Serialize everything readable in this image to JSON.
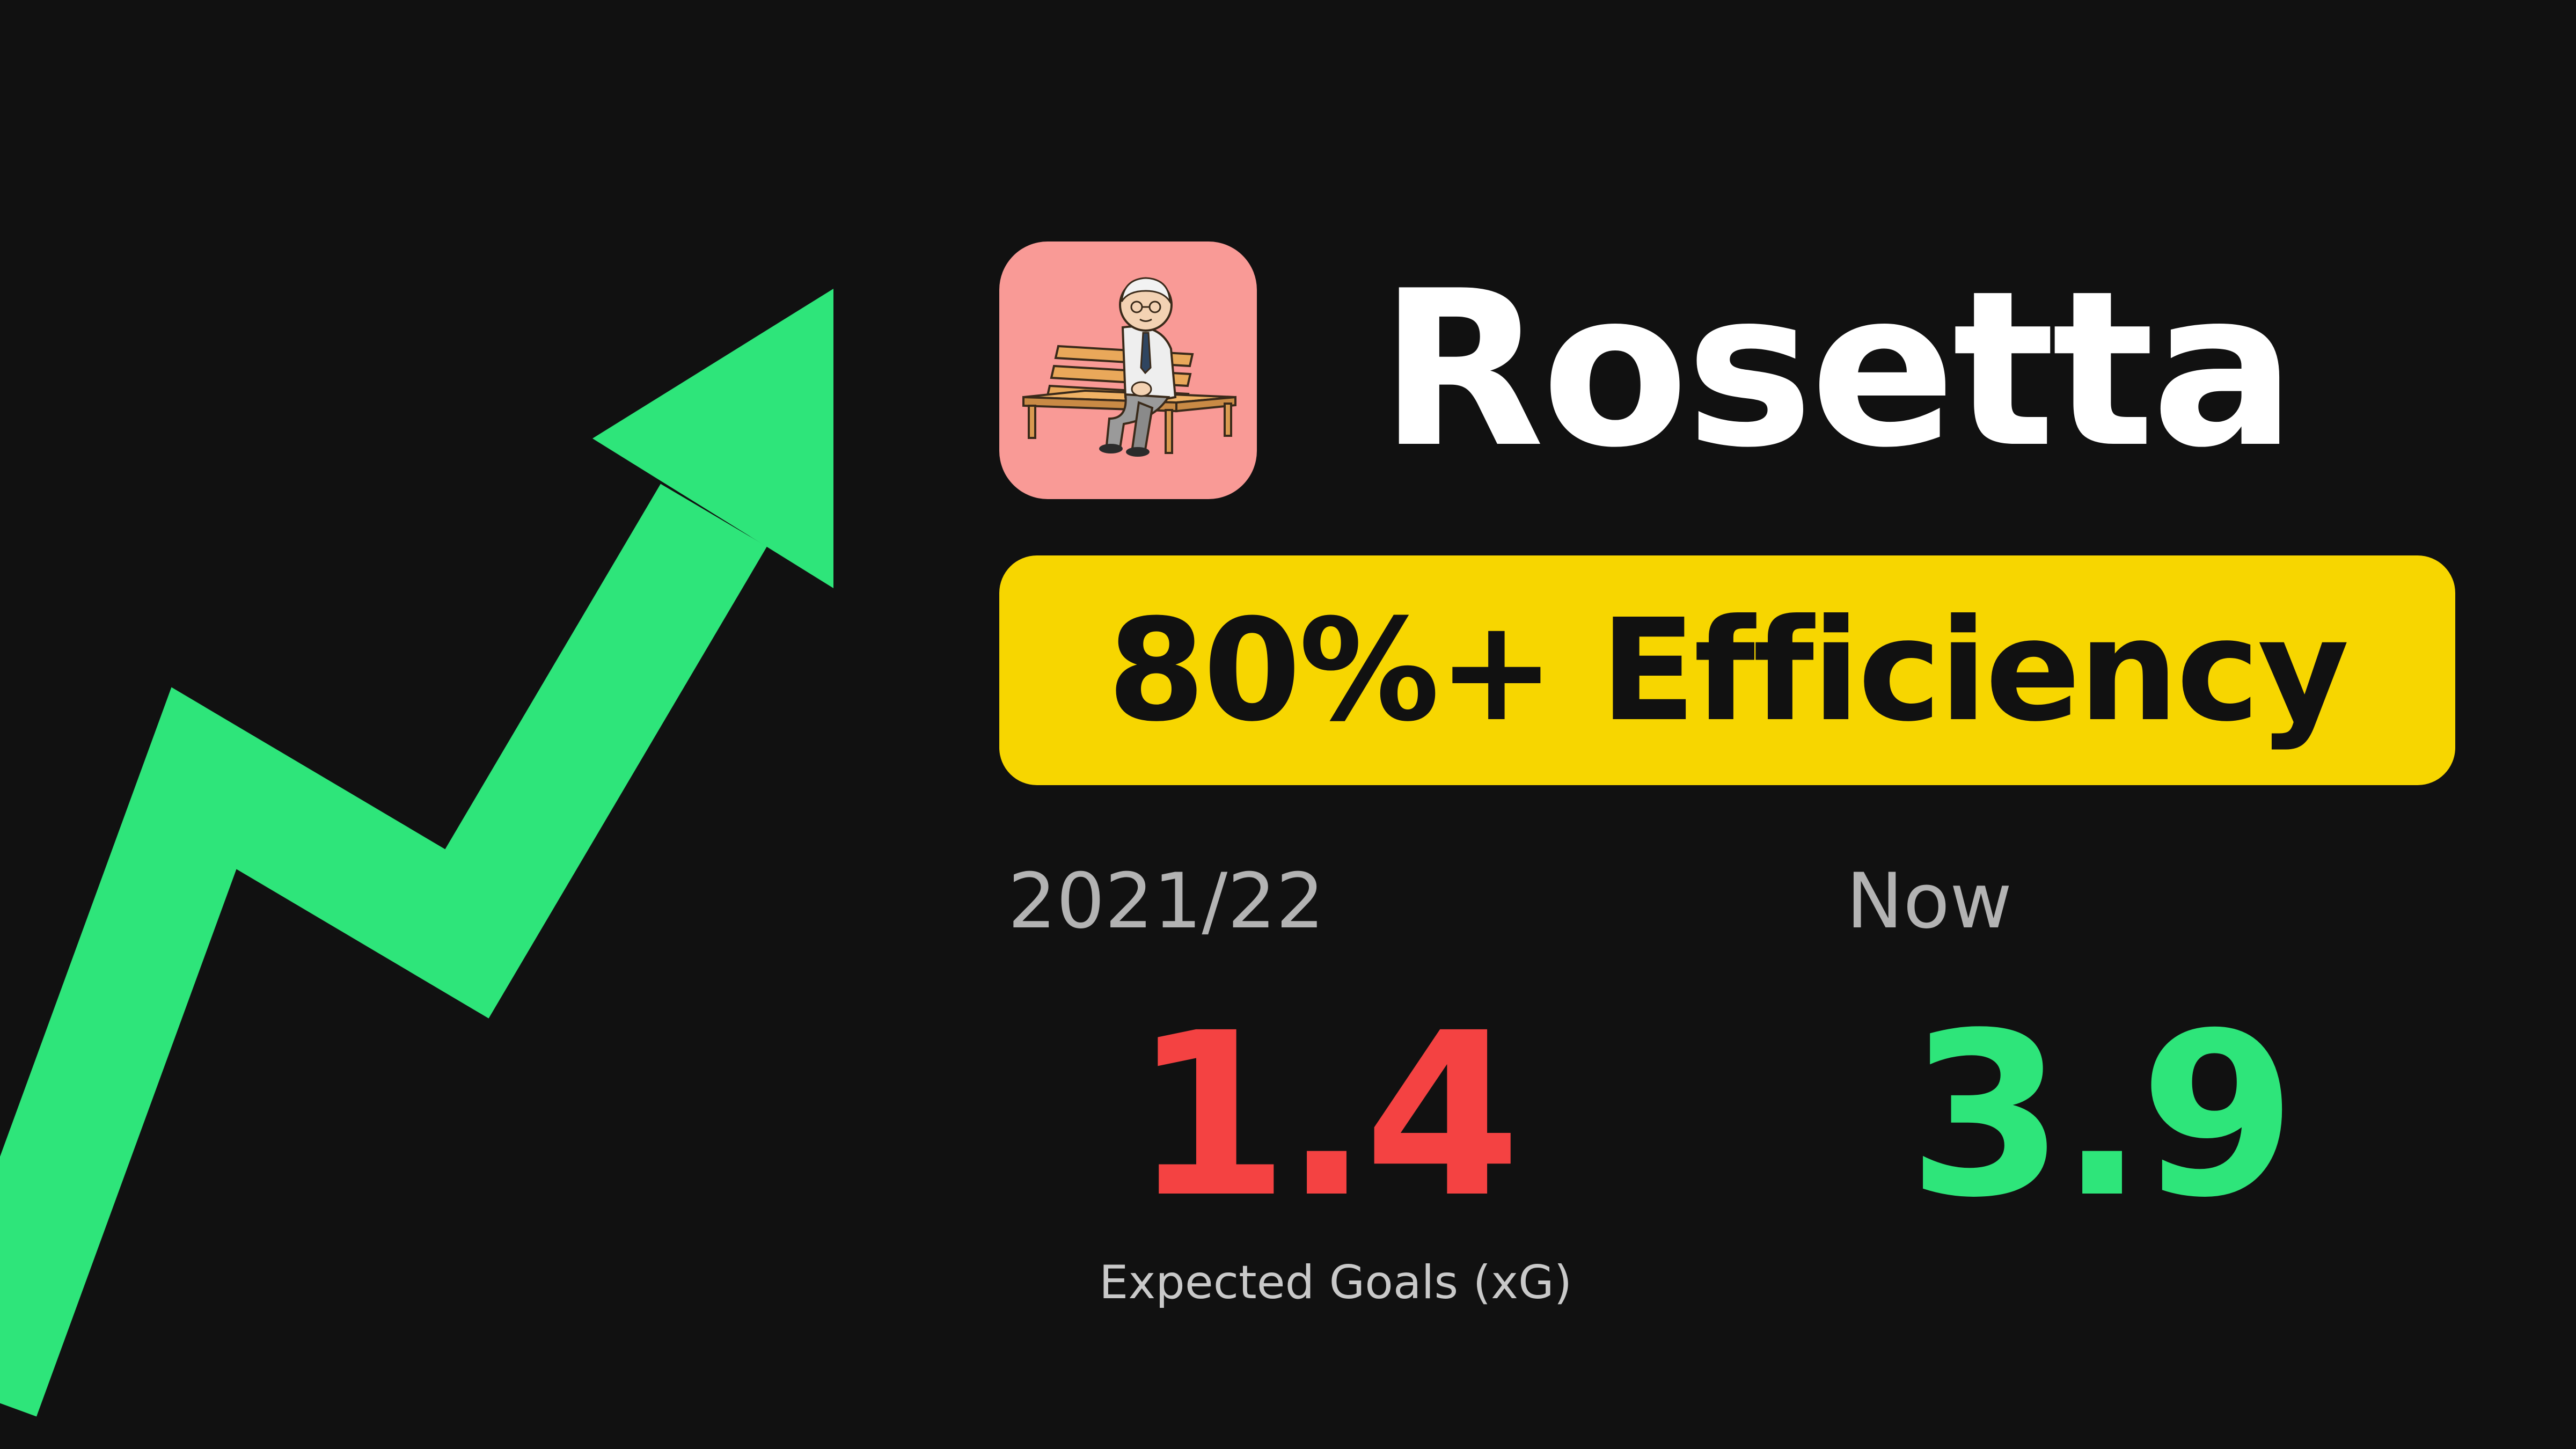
{
  "colors": {
    "background": "#111111",
    "arrow": "#2ee57a",
    "badge": "#f7d600",
    "app_icon_bg": "#f99a96",
    "before_value": "#f44242",
    "after_value": "#2ee57a"
  },
  "icons": {
    "trend": "trend-up-arrow-icon",
    "app": "old-man-on-bench-illustration"
  },
  "app": {
    "name": "Rosetta"
  },
  "badge": {
    "text": "80%+ Efficiency"
  },
  "comparison": {
    "before": {
      "label": "2021/22",
      "value": "1.4"
    },
    "after": {
      "label": "Now",
      "value": "3.9"
    },
    "metric": "Expected Goals (xG)"
  }
}
